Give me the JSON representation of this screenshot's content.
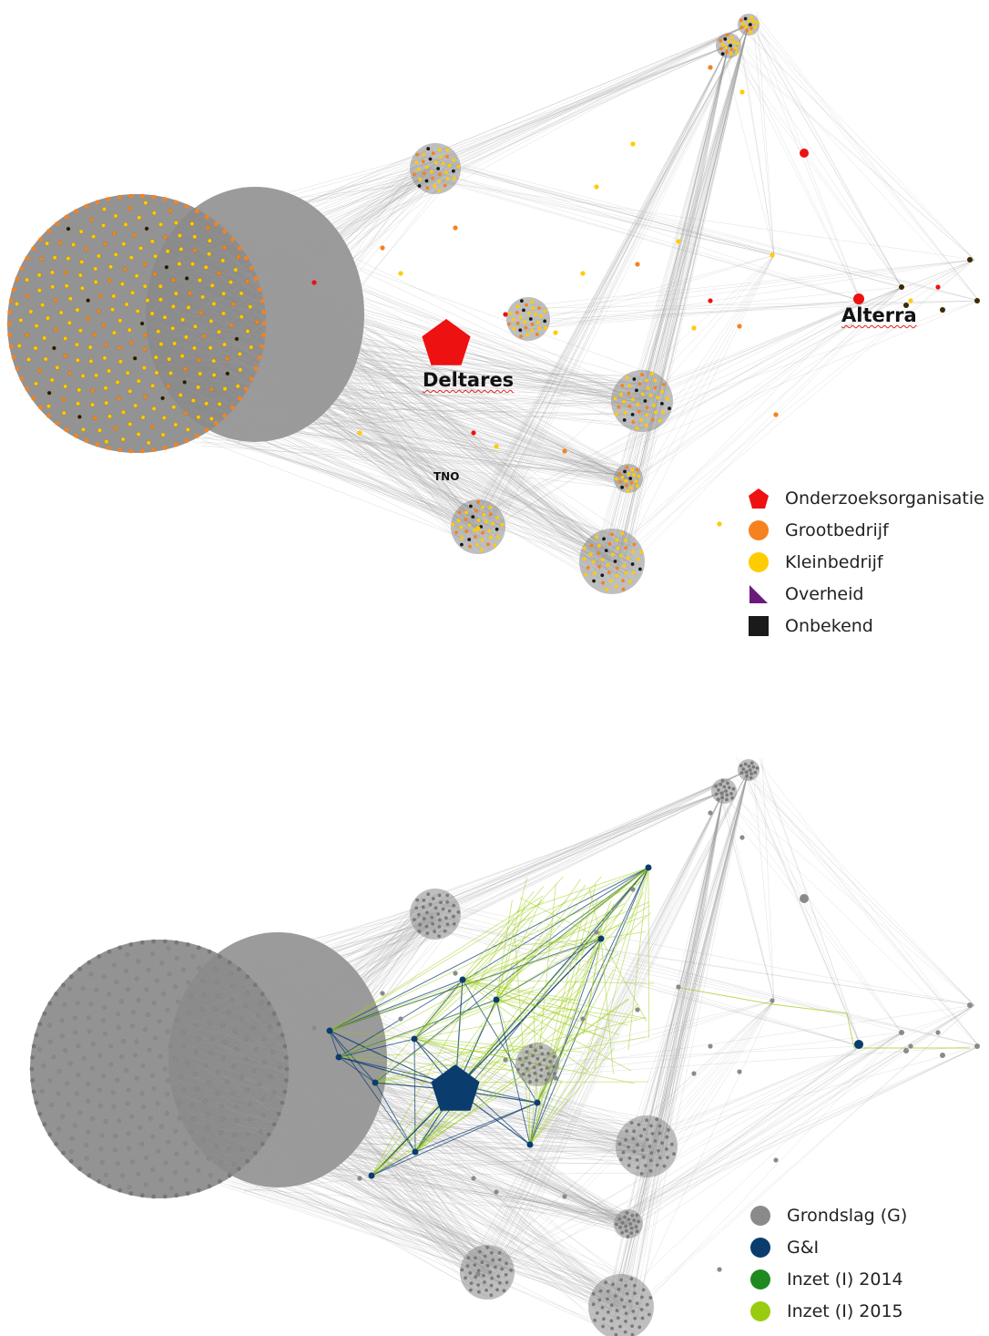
{
  "top_network": {
    "labels": {
      "deltares": "Deltares",
      "alterra": "Alterra",
      "tno": "TNO"
    },
    "legend": [
      {
        "label": "Onderzoeksorganisatie",
        "color": "#ee1111",
        "shape": "pentagon"
      },
      {
        "label": "Grootbedrijf",
        "color": "#f5821f",
        "shape": "circle"
      },
      {
        "label": "Kleinbedrijf",
        "color": "#ffcc00",
        "shape": "circle"
      },
      {
        "label": "Overheid",
        "color": "#6a1b7a",
        "shape": "triangle"
      },
      {
        "label": "Onbekend",
        "color": "#1a1a1a",
        "shape": "square"
      }
    ]
  },
  "bottom_network": {
    "legend": [
      {
        "label": "Grondslag (G)",
        "color": "#8a8a8a",
        "shape": "circle"
      },
      {
        "label": "G&I",
        "color": "#0b3c6e",
        "shape": "circle"
      },
      {
        "label": "Inzet (I) 2014",
        "color": "#1f8a1f",
        "shape": "circle"
      },
      {
        "label": "Inzet (I) 2015",
        "color": "#99cc11",
        "shape": "circle"
      }
    ]
  },
  "colors": {
    "edge": "#9a9a9a",
    "node_grey": "#8a8a8a",
    "dark_blue": "#0b3c6e",
    "lime": "#99cc11",
    "red": "#ee1111",
    "orange": "#f5821f",
    "yellow": "#ffcc00"
  }
}
